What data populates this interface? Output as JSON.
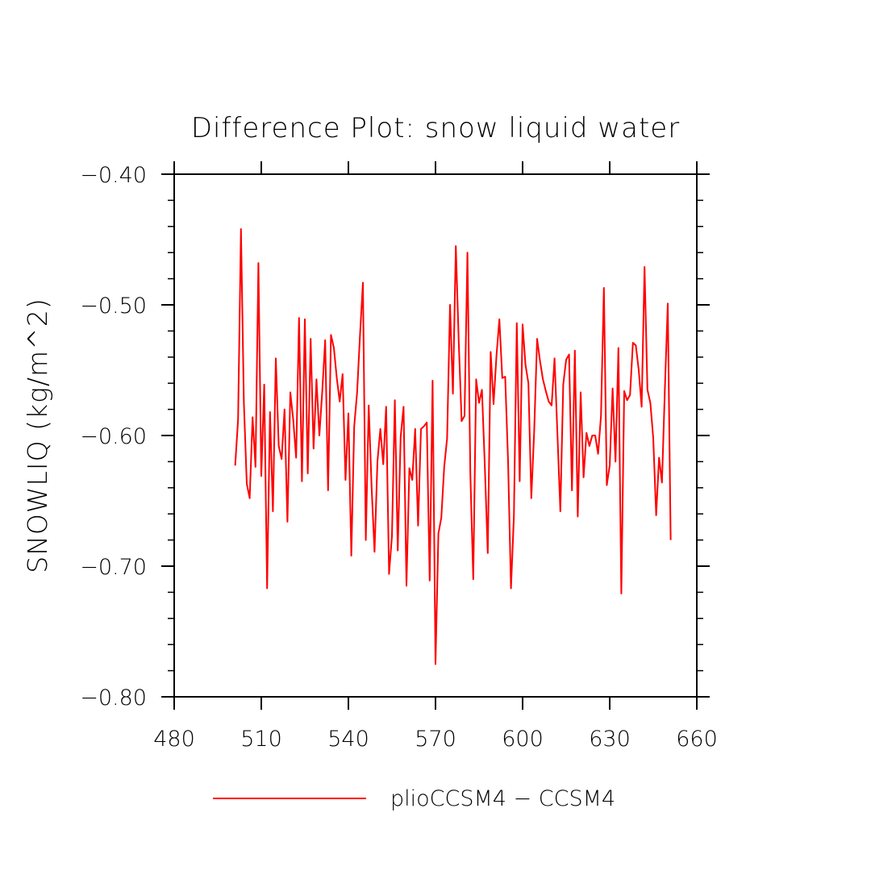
{
  "chart_data": {
    "type": "line",
    "title": "Difference Plot: snow liquid water",
    "xlabel": "",
    "ylabel": "SNOWLIQ   (kg/m^2)",
    "xlim": [
      480,
      660
    ],
    "ylim": [
      -0.8,
      -0.4
    ],
    "x_ticks": [
      480,
      510,
      540,
      570,
      600,
      630,
      660
    ],
    "x_tick_labels": [
      "480",
      "510",
      "540",
      "570",
      "600",
      "630",
      "660"
    ],
    "y_ticks": [
      -0.8,
      -0.7,
      -0.6,
      -0.5,
      -0.4
    ],
    "y_tick_labels": [
      "−0.80",
      "−0.70",
      "−0.60",
      "−0.50",
      "−0.40"
    ],
    "grid": false,
    "legend_position": "bottom-center",
    "series": [
      {
        "name": "plioCCSM4 − CCSM4",
        "color": "#ff0000",
        "x_start": 501,
        "x_step": 1,
        "values": [
          -0.623,
          -0.588,
          -0.442,
          -0.575,
          -0.637,
          -0.648,
          -0.586,
          -0.624,
          -0.468,
          -0.631,
          -0.561,
          -0.717,
          -0.582,
          -0.658,
          -0.541,
          -0.608,
          -0.618,
          -0.58,
          -0.666,
          -0.567,
          -0.588,
          -0.617,
          -0.51,
          -0.635,
          -0.511,
          -0.629,
          -0.526,
          -0.61,
          -0.557,
          -0.6,
          -0.566,
          -0.527,
          -0.642,
          -0.523,
          -0.533,
          -0.556,
          -0.574,
          -0.553,
          -0.634,
          -0.583,
          -0.692,
          -0.593,
          -0.567,
          -0.523,
          -0.483,
          -0.68,
          -0.577,
          -0.64,
          -0.689,
          -0.62,
          -0.595,
          -0.622,
          -0.578,
          -0.706,
          -0.677,
          -0.573,
          -0.688,
          -0.601,
          -0.578,
          -0.715,
          -0.625,
          -0.634,
          -0.595,
          -0.669,
          -0.595,
          -0.593,
          -0.59,
          -0.711,
          -0.558,
          -0.775,
          -0.675,
          -0.663,
          -0.624,
          -0.602,
          -0.5,
          -0.568,
          -0.455,
          -0.528,
          -0.589,
          -0.585,
          -0.46,
          -0.629,
          -0.71,
          -0.557,
          -0.575,
          -0.565,
          -0.624,
          -0.69,
          -0.536,
          -0.576,
          -0.539,
          -0.511,
          -0.556,
          -0.555,
          -0.62,
          -0.717,
          -0.662,
          -0.514,
          -0.635,
          -0.515,
          -0.546,
          -0.56,
          -0.648,
          -0.596,
          -0.526,
          -0.543,
          -0.557,
          -0.566,
          -0.574,
          -0.577,
          -0.541,
          -0.599,
          -0.658,
          -0.561,
          -0.542,
          -0.538,
          -0.642,
          -0.535,
          -0.662,
          -0.567,
          -0.632,
          -0.598,
          -0.608,
          -0.6,
          -0.6,
          -0.614,
          -0.585,
          -0.487,
          -0.638,
          -0.623,
          -0.564,
          -0.62,
          -0.533,
          -0.721,
          -0.566,
          -0.573,
          -0.569,
          -0.529,
          -0.531,
          -0.55,
          -0.578,
          -0.471,
          -0.565,
          -0.575,
          -0.602,
          -0.661,
          -0.617,
          -0.636,
          -0.565,
          -0.499,
          -0.68
        ]
      }
    ]
  }
}
